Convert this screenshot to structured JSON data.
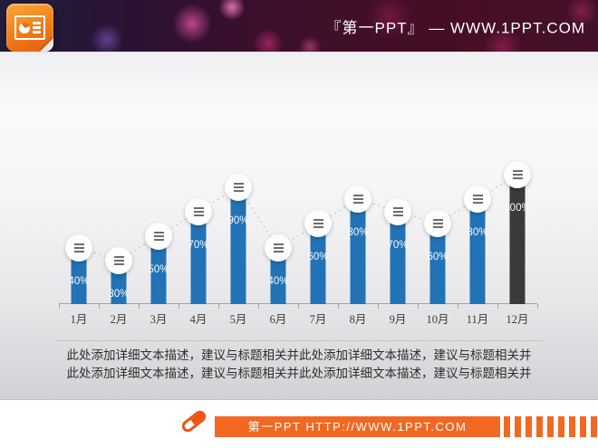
{
  "header": {
    "brand_text": "『第一PPT』 — WWW.1PPT.COM"
  },
  "chart_data": {
    "type": "bar",
    "title": "",
    "categories": [
      "1月",
      "2月",
      "3月",
      "4月",
      "5月",
      "6月",
      "7月",
      "8月",
      "9月",
      "10月",
      "11月",
      "12月"
    ],
    "values": [
      40,
      30,
      50,
      70,
      90,
      40,
      60,
      80,
      70,
      60,
      80,
      100
    ],
    "value_suffix": "%",
    "ylim": [
      0,
      100
    ],
    "grid": false,
    "legend": "none",
    "bar_color": "#2173b6",
    "highlight_index": 11,
    "highlight_color": "#3a3a3a",
    "connector_color": "#bdbdbd",
    "connector_style": "dashed",
    "node_icon": "hamburger-menu"
  },
  "body": {
    "description_lines": [
      "此处添加详细文本描述，建议与标题相关并此处添加详细文本描述，建议与标题相关并",
      "此处添加详细文本描述，建议与标题相关并此处添加详细文本描述，建议与标题相关并"
    ]
  },
  "footer": {
    "site_text": "第一PPT HTTP://WWW.1PPT.COM",
    "accent_color": "#F26822"
  }
}
